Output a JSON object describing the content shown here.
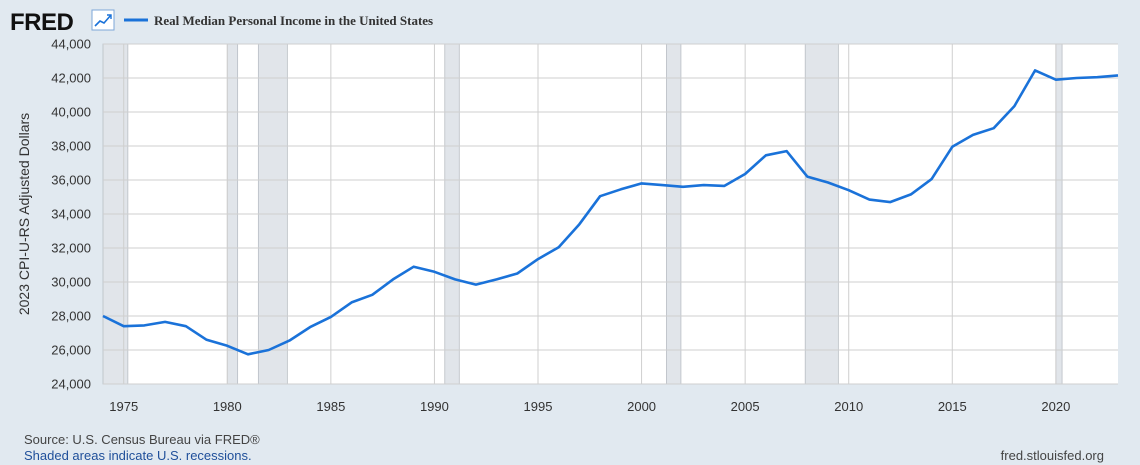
{
  "header": {
    "logo_text": "FRED",
    "logo_icon": "trend-line-icon",
    "legend_label": "Real Median Personal Income in the United States"
  },
  "footer": {
    "source": "Source: U.S. Census Bureau via FRED®",
    "recession_note": "Shaded areas indicate U.S. recessions.",
    "site": "fred.stlouisfed.org"
  },
  "colors": {
    "background": "#e1e9f0",
    "plot_background": "#ffffff",
    "line": "#1a72d9",
    "recession": "#e1e5ea",
    "grid": "#cfcfcf"
  },
  "chart_data": {
    "type": "line",
    "ylabel": "2023 CPI-U-RS Adjusted Dollars",
    "xlabel": "",
    "xlim": [
      1974,
      2023
    ],
    "ylim": [
      24000,
      44000
    ],
    "x_ticks": [
      "1975",
      "1980",
      "1985",
      "1990",
      "1995",
      "2000",
      "2005",
      "2010",
      "2015",
      "2020"
    ],
    "y_ticks": [
      "24,000",
      "26,000",
      "28,000",
      "30,000",
      "32,000",
      "34,000",
      "36,000",
      "38,000",
      "40,000",
      "42,000",
      "44,000"
    ],
    "grid": true,
    "recessions": [
      [
        1973.9,
        1975.2
      ],
      [
        1980.0,
        1980.5
      ],
      [
        1981.5,
        1982.9
      ],
      [
        1990.5,
        1991.2
      ],
      [
        2001.2,
        2001.9
      ],
      [
        2007.9,
        2009.5
      ],
      [
        2020.0,
        2020.3
      ]
    ],
    "series": [
      {
        "name": "Real Median Personal Income in the United States",
        "x": [
          1974,
          1975,
          1976,
          1977,
          1978,
          1979,
          1980,
          1981,
          1982,
          1983,
          1984,
          1985,
          1986,
          1987,
          1988,
          1989,
          1990,
          1991,
          1992,
          1993,
          1994,
          1995,
          1996,
          1997,
          1998,
          1999,
          2000,
          2001,
          2002,
          2003,
          2004,
          2005,
          2006,
          2007,
          2008,
          2009,
          2010,
          2011,
          2012,
          2013,
          2014,
          2015,
          2016,
          2017,
          2018,
          2019,
          2020,
          2021,
          2022,
          2023
        ],
        "values": [
          28000,
          27400,
          27450,
          27650,
          27400,
          26600,
          26250,
          25750,
          26000,
          26550,
          27350,
          27950,
          28800,
          29250,
          30150,
          30900,
          30600,
          30150,
          29850,
          30150,
          30500,
          31350,
          32050,
          33400,
          35050,
          35450,
          35800,
          35700,
          35600,
          35700,
          35650,
          36350,
          37450,
          37700,
          36200,
          35850,
          35400,
          34850,
          34700,
          35150,
          36050,
          37950,
          38650,
          39050,
          40350,
          42450,
          41900,
          42000,
          42050,
          42150
        ]
      }
    ]
  }
}
